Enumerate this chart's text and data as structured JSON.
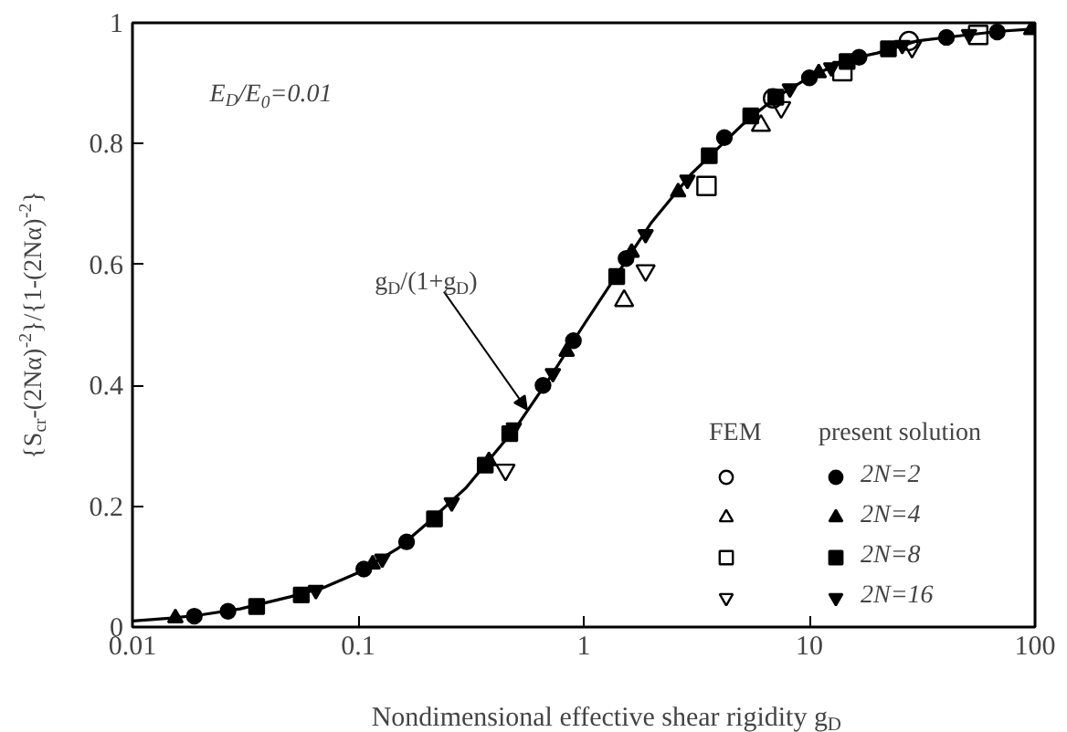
{
  "chart_data": {
    "type": "scatter",
    "xlabel": "Nondimensional effective shear rigidity g$_{D}$",
    "ylabel": "{S$_{cr}$-(2Nα)$^{-2}$}/{1-(2Nα)$^{-2}$}",
    "log": "x",
    "xlim": [
      0.01,
      100
    ],
    "ylim": [
      0,
      1
    ],
    "xticks": [
      0.01,
      0.1,
      1,
      10,
      100
    ],
    "yticks": [
      0,
      0.2,
      0.4,
      0.6,
      0.8,
      1
    ],
    "grid": false,
    "legend": "bottom right",
    "annotations": [
      "E$_{D}$/E$_{0}$=0.01",
      {
        "text": "g$_{D}$/(1+g$_{D}$)",
        "x": 0.56,
        "y": 0.36
      },
      "FEM",
      "present solution"
    ],
    "series": [
      {
        "type": "line",
        "color": "#000000",
        "x": [
          0.01,
          0.015,
          0.02,
          0.03,
          0.05,
          0.07,
          0.1,
          0.15,
          0.2,
          0.3,
          0.5,
          0.7,
          1,
          1.5,
          2,
          3,
          5,
          7,
          10,
          15,
          20,
          30,
          50,
          70,
          100
        ],
        "values": [
          0.01,
          0.015,
          0.02,
          0.03,
          0.05,
          0.065,
          0.09,
          0.13,
          0.17,
          0.23,
          0.33,
          0.41,
          0.5,
          0.6,
          0.67,
          0.75,
          0.83,
          0.875,
          0.91,
          0.94,
          0.95,
          0.97,
          0.98,
          0.986,
          0.99
        ]
      },
      {
        "color": "#000000",
        "marker": "circle",
        "x": [
          6.9,
          27.6
        ],
        "values": [
          0.875,
          0.97
        ]
      },
      {
        "color": "#000000",
        "marker": "triangle",
        "x": [
          1.51,
          6.1,
          98
        ],
        "values": [
          0.54,
          0.83,
          0.99
        ]
      },
      {
        "color": "#000000",
        "marker": "square",
        "x": [
          3.5,
          14.0,
          56
        ],
        "values": [
          0.73,
          0.92,
          0.98
        ]
      },
      {
        "color": "#000000",
        "x": [
          0.45,
          1.88,
          7.5,
          28.5
        ],
        "values": [
          0.26,
          0.59,
          0.86,
          0.96
        ]
      },
      {
        "name": "2N=2",
        "color": "#000000",
        "marker": "circle",
        "x": [
          0.0188,
          0.0265,
          0.106,
          0.164,
          0.66,
          0.9,
          1.54,
          4.2,
          10.0,
          16.6,
          40.5,
          68
        ],
        "values": [
          0.018,
          0.026,
          0.096,
          0.141,
          0.4,
          0.474,
          0.61,
          0.81,
          0.909,
          0.943,
          0.976,
          0.985
        ]
      },
      {
        "name": "2N=4",
        "color": "#000000",
        "marker": "triangle",
        "x": [
          0.0155,
          0.116,
          0.38,
          0.84,
          1.63,
          2.62,
          11.0,
          98
        ],
        "values": [
          0.015,
          0.104,
          0.275,
          0.456,
          0.62,
          0.72,
          0.917,
          0.99
        ]
      },
      {
        "name": "2N=8",
        "color": "#000000",
        "marker": "square",
        "x": [
          0.0355,
          0.056,
          0.218,
          0.366,
          0.47,
          1.4,
          3.6,
          5.5,
          7.1,
          14.7,
          22.4
        ],
        "values": [
          0.034,
          0.053,
          0.179,
          0.268,
          0.32,
          0.58,
          0.78,
          0.846,
          0.877,
          0.936,
          0.957
        ]
      },
      {
        "name": "2N=16",
        "color": "#000000",
        "x": [
          0.065,
          0.128,
          0.26,
          0.49,
          0.73,
          1.88,
          2.88,
          8.2,
          12.5,
          25.8,
          51
        ],
        "values": [
          0.061,
          0.113,
          0.206,
          0.33,
          0.42,
          0.65,
          0.74,
          0.891,
          0.926,
          0.963,
          0.981
        ]
      }
    ]
  }
}
